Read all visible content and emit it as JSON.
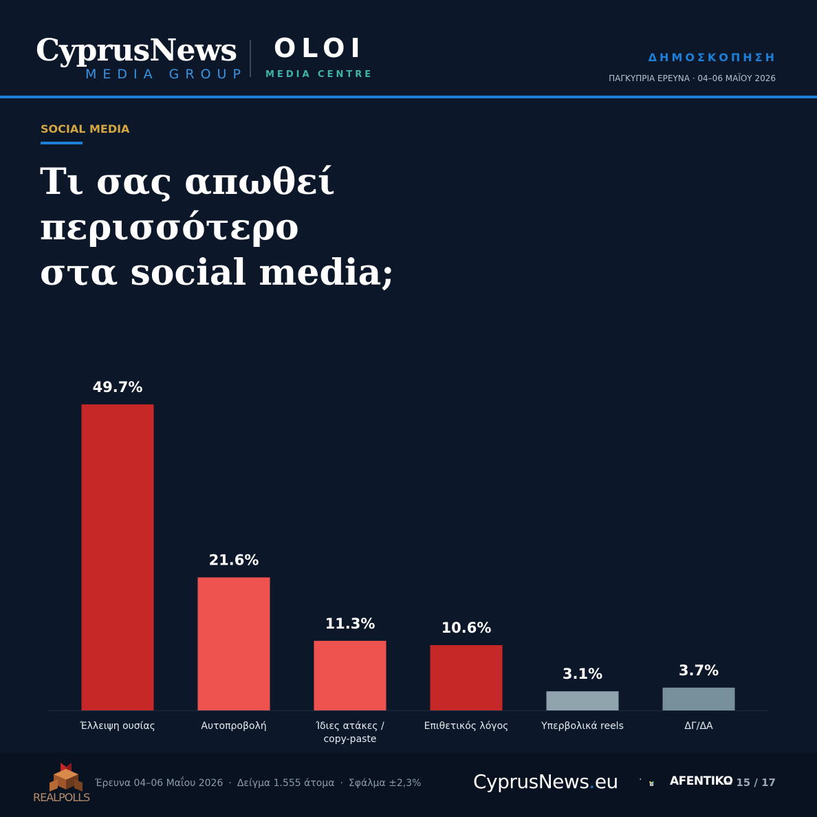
{
  "header": {
    "logo_primary": "CyprusNews",
    "logo_primary_sub": "MEDIA GROUP",
    "logo_secondary": "OLOI",
    "logo_secondary_sub": "MEDIA CENTRE",
    "kicker": "ΔΗΜΟΣΚΟΠΗΣΗ",
    "meta": "ΠΑΓΚΥΠΡΙΑ ΕΡΕΥΝΑ · 04–06 ΜΑΪΟΥ 2026"
  },
  "section": "SOCIAL MEDIA",
  "title_lines": [
    "Τι σας απωθεί",
    "περισσότερο",
    "στα social media;"
  ],
  "colors": {
    "background": "#0c1829",
    "accent_blue": "#1e7fd6",
    "dark_red": "#c62828",
    "light_red": "#ef5350",
    "grey_light": "#90a4ae",
    "grey_dark": "#78909c"
  },
  "chart_data": {
    "type": "bar",
    "title": "Τι σας απωθεί περισσότερο στα social media;",
    "xlabel": "",
    "ylabel": "",
    "unit": "%",
    "ylim": [
      0,
      49.7
    ],
    "grid": false,
    "legend": "none",
    "categories": [
      [
        "Έλλειψη ουσίας"
      ],
      [
        "Αυτοπροβολή"
      ],
      [
        "Ίδιες ατάκες /",
        "copy-paste"
      ],
      [
        "Επιθετικός λόγος"
      ],
      [
        "Υπερβολικά reels"
      ],
      [
        "ΔΓ/ΔΑ"
      ]
    ],
    "values": [
      49.7,
      21.6,
      11.3,
      10.6,
      3.1,
      3.7
    ],
    "value_labels": [
      "49.7%",
      "21.6%",
      "11.3%",
      "10.6%",
      "3.1%",
      "3.7%"
    ],
    "bar_colors": [
      "#c62828",
      "#ef5350",
      "#ef5350",
      "#c62828",
      "#90a4ae",
      "#78909c"
    ]
  },
  "footer": {
    "pollster_logo_text": "REALPOLLS",
    "fieldwork": "Έρευνα 04–06 Μαΐου 2026",
    "sample": "Δείγμα 1.555 άτομα",
    "margin": "Σφάλμα ±2,3%",
    "site_name": "CyprusNews",
    "site_tld": "eu",
    "partner_logo_text": "AFENTIKO",
    "partner_logo_suffix": "eu",
    "page": "15 / 17"
  }
}
